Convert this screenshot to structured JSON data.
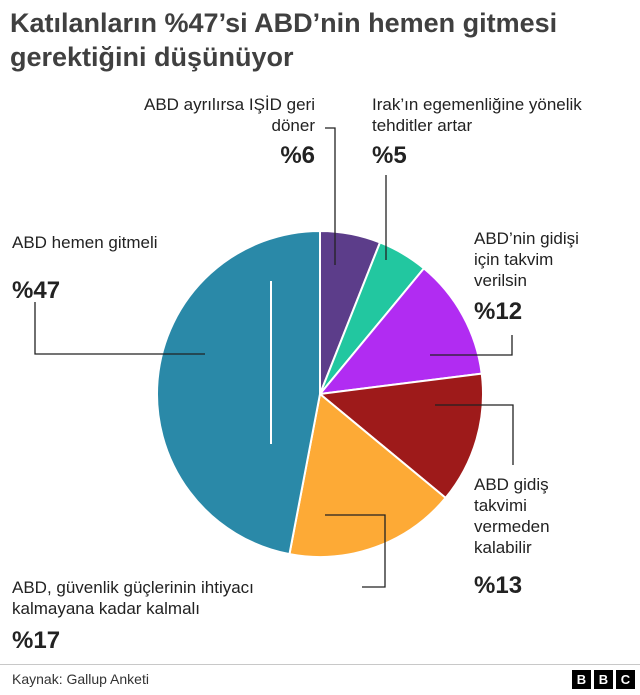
{
  "title": {
    "line1": "Katılanların %47’si ABD’nin hemen gitmesi",
    "line2": "gerektiğini düşünüyor"
  },
  "chart_data": {
    "type": "pie",
    "title": "Katılanların %47’si ABD’nin hemen gitmesi gerektiğini düşünüyor",
    "slices": [
      {
        "label": "ABD ayrılırsa IŞİD geri döner",
        "value": 6,
        "pct_label": "%6",
        "color": "#5c3d8a"
      },
      {
        "label": "Irak’ın egemenliğine yönelik tehditler artar",
        "value": 5,
        "pct_label": "%5",
        "color": "#22c7a0"
      },
      {
        "label": "ABD’nin gidişi için takvim verilsin",
        "value": 12,
        "pct_label": "%12",
        "color": "#b12cf2"
      },
      {
        "label": "ABD gidiş takvimi vermeden kalabilir",
        "value": 13,
        "pct_label": "%13",
        "color": "#9e1a1a"
      },
      {
        "label": "ABD, güvenlik güçlerinin ihtiyacı kalmayana kadar kalmalı",
        "value": 17,
        "pct_label": "%17",
        "color": "#fdaa36"
      },
      {
        "label": "ABD hemen gitmeli",
        "value": 47,
        "pct_label": "%47",
        "color": "#2a89a8"
      }
    ]
  },
  "labels": {
    "isid": {
      "line1": "ABD ayrılırsa IŞİD geri",
      "line2": "döner",
      "pct": "%6"
    },
    "irak": {
      "line1": "Irak’ın egemenliğine yönelik",
      "line2": "tehditler artar",
      "pct": "%5"
    },
    "takvim": {
      "line1": "ABD’nin gidişi",
      "line2": "için takvim",
      "line3": "verilsin",
      "pct": "%12"
    },
    "kalabilir": {
      "line1": "ABD gidiş",
      "line2": "takvimi",
      "line3": "vermeden",
      "line4": "kalabilir",
      "pct": "%13"
    },
    "guvenlik": {
      "line1": "ABD, güvenlik güçlerinin ihtiyacı",
      "line2": "kalmayana kadar kalmalı",
      "pct": "%17"
    },
    "hemen": {
      "line1": "ABD hemen gitmeli",
      "pct": "%47"
    }
  },
  "footer": {
    "source": "Kaynak: Gallup Anketi",
    "logo": [
      "B",
      "B",
      "C"
    ]
  }
}
